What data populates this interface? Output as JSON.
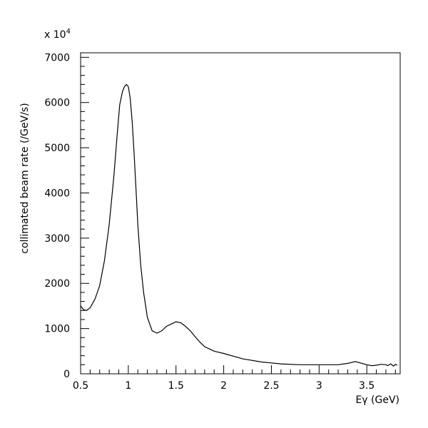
{
  "chart_data": {
    "type": "line",
    "title": "",
    "xlabel": "Eγ (GeV)",
    "ylabel": "collimated beam rate (/GeV/s)",
    "y_multiplier": "x 10",
    "y_multiplier_exponent": "4",
    "xlim": [
      0.5,
      3.85
    ],
    "ylim": [
      0,
      7100
    ],
    "x_ticks": [
      {
        "value": 0.5,
        "label": "0.5"
      },
      {
        "value": 1.0,
        "label": "1"
      },
      {
        "value": 1.5,
        "label": "1.5"
      },
      {
        "value": 2.0,
        "label": "2"
      },
      {
        "value": 2.5,
        "label": "2.5"
      },
      {
        "value": 3.0,
        "label": "3"
      },
      {
        "value": 3.5,
        "label": "3.5"
      }
    ],
    "y_ticks": [
      {
        "value": 0,
        "label": "0"
      },
      {
        "value": 1000,
        "label": "1000"
      },
      {
        "value": 2000,
        "label": "2000"
      },
      {
        "value": 3000,
        "label": "3000"
      },
      {
        "value": 4000,
        "label": "4000"
      },
      {
        "value": 5000,
        "label": "5000"
      },
      {
        "value": 6000,
        "label": "6000"
      },
      {
        "value": 7000,
        "label": "7000"
      }
    ],
    "series": [
      {
        "color": "#000000",
        "x": [
          0.5,
          0.53,
          0.56,
          0.6,
          0.65,
          0.7,
          0.75,
          0.8,
          0.85,
          0.88,
          0.91,
          0.94,
          0.96,
          0.98,
          1.0,
          1.02,
          1.04,
          1.06,
          1.08,
          1.1,
          1.13,
          1.16,
          1.2,
          1.25,
          1.3,
          1.35,
          1.4,
          1.45,
          1.5,
          1.55,
          1.6,
          1.65,
          1.7,
          1.75,
          1.8,
          1.85,
          1.9,
          2.0,
          2.2,
          2.4,
          2.6,
          2.8,
          3.0,
          3.2,
          3.3,
          3.38,
          3.45,
          3.5,
          3.55,
          3.6,
          3.65,
          3.7,
          3.72,
          3.75,
          3.78,
          3.8,
          3.82
        ],
        "y": [
          1500,
          1420,
          1400,
          1460,
          1650,
          1950,
          2500,
          3300,
          4400,
          5200,
          5950,
          6250,
          6350,
          6400,
          6350,
          6100,
          5600,
          4900,
          4100,
          3300,
          2400,
          1800,
          1250,
          950,
          900,
          950,
          1050,
          1100,
          1150,
          1130,
          1050,
          950,
          820,
          700,
          600,
          550,
          500,
          450,
          330,
          260,
          220,
          200,
          200,
          200,
          230,
          270,
          230,
          200,
          180,
          190,
          210,
          200,
          180,
          220,
          170,
          210,
          190
        ]
      }
    ]
  }
}
